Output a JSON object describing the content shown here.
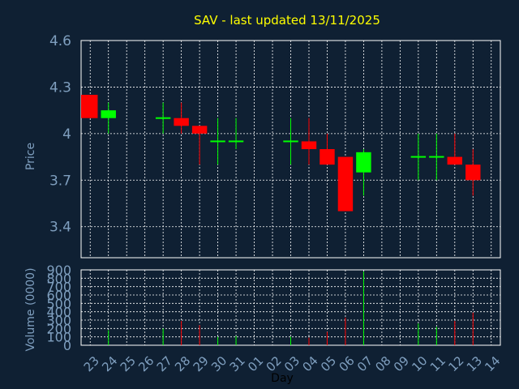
{
  "title": "SAV - last updated 13/11/2025",
  "colors": {
    "background": "#0f2033",
    "up": "#00ff00",
    "down": "#ff0000",
    "grid": "#ffffff",
    "text": "#7f9fbf",
    "title": "#ffff00"
  },
  "chart_data": [
    {
      "type": "candlestick",
      "ylabel": "Price",
      "ylim": [
        3.2,
        4.6
      ],
      "yticks": [
        "4.6",
        "4.3",
        "4",
        "3.7",
        "3.4"
      ],
      "grid": true,
      "days": [
        "23",
        "24",
        "25",
        "26",
        "27",
        "28",
        "29",
        "30",
        "31",
        "01",
        "02",
        "03",
        "04",
        "05",
        "06",
        "07",
        "08",
        "09",
        "10",
        "11",
        "12",
        "13",
        "14"
      ],
      "candles": [
        {
          "day": 23,
          "open": 4.25,
          "high": 4.25,
          "low": 4.1,
          "close": 4.1
        },
        {
          "day": 24,
          "open": 4.1,
          "high": 4.2,
          "low": 4.0,
          "close": 4.15
        },
        {
          "day": 27,
          "open": 4.1,
          "high": 4.2,
          "low": 4.0,
          "close": 4.1
        },
        {
          "day": 28,
          "open": 4.1,
          "high": 4.2,
          "low": 4.0,
          "close": 4.05
        },
        {
          "day": 29,
          "open": 4.05,
          "high": 4.05,
          "low": 3.8,
          "close": 4.0
        },
        {
          "day": 30,
          "open": 3.95,
          "high": 4.1,
          "low": 3.8,
          "close": 3.95
        },
        {
          "day": 31,
          "open": 3.95,
          "high": 4.1,
          "low": 3.9,
          "close": 3.95
        },
        {
          "day": "03",
          "open": 3.95,
          "high": 4.1,
          "low": 3.8,
          "close": 3.95
        },
        {
          "day": "04",
          "open": 3.95,
          "high": 4.1,
          "low": 3.8,
          "close": 3.9
        },
        {
          "day": "05",
          "open": 3.9,
          "high": 4.0,
          "low": 3.8,
          "close": 3.8
        },
        {
          "day": "06",
          "open": 3.85,
          "high": 3.85,
          "low": 3.5,
          "close": 3.5
        },
        {
          "day": "07",
          "open": 3.75,
          "high": 3.9,
          "low": 3.6,
          "close": 3.88
        },
        {
          "day": 10,
          "open": 3.85,
          "high": 4.0,
          "low": 3.7,
          "close": 3.85
        },
        {
          "day": 11,
          "open": 3.85,
          "high": 4.0,
          "low": 3.7,
          "close": 3.85
        },
        {
          "day": 12,
          "open": 3.85,
          "high": 4.0,
          "low": 3.8,
          "close": 3.8
        },
        {
          "day": 13,
          "open": 3.8,
          "high": 3.9,
          "low": 3.6,
          "close": 3.7
        }
      ]
    },
    {
      "type": "bar",
      "ylabel": "Volume (0000)",
      "xlabel": "Day",
      "ylim": [
        0,
        900
      ],
      "yticks": [
        "900",
        "800",
        "700",
        "600",
        "500",
        "400",
        "300",
        "200",
        "100",
        "0"
      ],
      "grid": true,
      "bars": [
        {
          "day": 24,
          "value": 180,
          "color": "up"
        },
        {
          "day": 27,
          "value": 200,
          "color": "up"
        },
        {
          "day": 28,
          "value": 290,
          "color": "down"
        },
        {
          "day": 29,
          "value": 240,
          "color": "down"
        },
        {
          "day": 30,
          "value": 100,
          "color": "up"
        },
        {
          "day": 31,
          "value": 110,
          "color": "up"
        },
        {
          "day": "03",
          "value": 100,
          "color": "up"
        },
        {
          "day": "04",
          "value": 90,
          "color": "down"
        },
        {
          "day": "05",
          "value": 160,
          "color": "down"
        },
        {
          "day": "06",
          "value": 330,
          "color": "down"
        },
        {
          "day": "07",
          "value": 880,
          "color": "up"
        },
        {
          "day": 10,
          "value": 260,
          "color": "up"
        },
        {
          "day": 11,
          "value": 220,
          "color": "up"
        },
        {
          "day": 12,
          "value": 290,
          "color": "down"
        },
        {
          "day": 13,
          "value": 390,
          "color": "down"
        }
      ]
    }
  ]
}
